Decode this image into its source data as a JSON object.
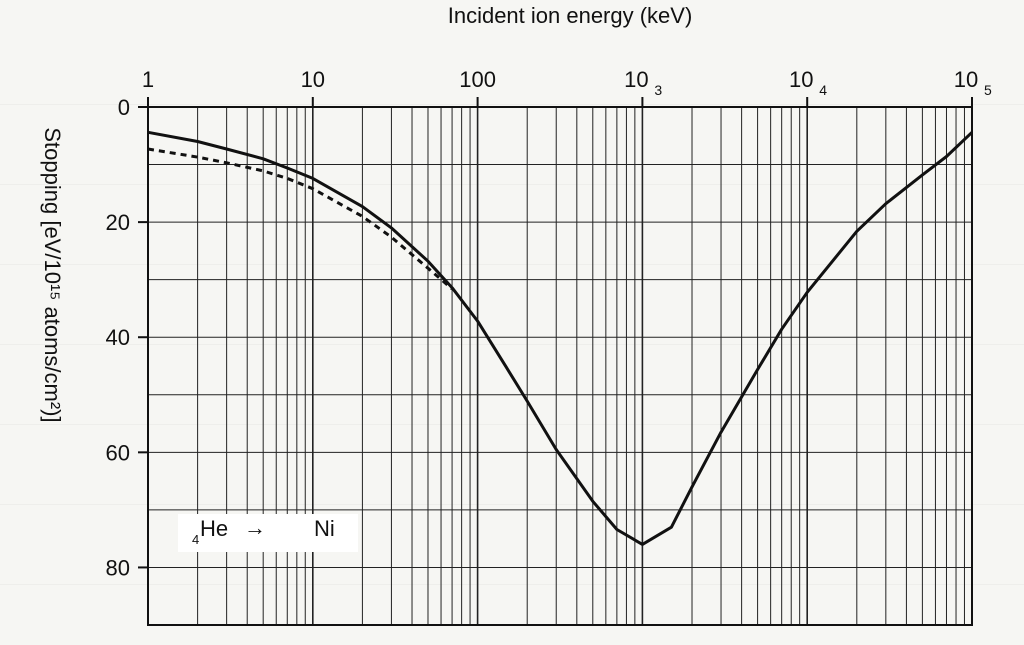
{
  "chart_data": {
    "type": "line",
    "title": "",
    "xlabel": "Incident ion energy (keV)",
    "ylabel": "Stopping [eV/10¹⁵ atoms/cm²)]",
    "x_scale": "log",
    "xlim": [
      1,
      100000
    ],
    "ylim": [
      0,
      90
    ],
    "y_inverted": true,
    "grid": true,
    "x_ticks": [
      {
        "value": 1,
        "base": "1",
        "exp": ""
      },
      {
        "value": 10,
        "base": "10",
        "exp": ""
      },
      {
        "value": 100,
        "base": "100",
        "exp": ""
      },
      {
        "value": 1000,
        "base": "10",
        "exp": "3"
      },
      {
        "value": 10000,
        "base": "10",
        "exp": "4"
      },
      {
        "value": 100000,
        "base": "10",
        "exp": "5"
      }
    ],
    "y_ticks": [
      0,
      20,
      40,
      60,
      80
    ],
    "series": [
      {
        "style": "solid",
        "x": [
          1,
          2,
          3,
          5,
          7,
          10,
          20,
          30,
          50,
          70,
          100,
          150,
          200,
          300,
          500,
          700,
          1000,
          1500,
          2000,
          3000,
          5000,
          7000,
          10000,
          20000,
          30000,
          50000,
          70000,
          100000
        ],
        "y": [
          4.4,
          6.0,
          7.3,
          9.0,
          10.6,
          12.4,
          17.3,
          21.0,
          26.8,
          31.4,
          37.2,
          45.3,
          51.1,
          59.5,
          68.5,
          73.4,
          76.0,
          73.0,
          66.0,
          56.5,
          45.6,
          38.6,
          32.2,
          21.6,
          16.8,
          11.8,
          8.6,
          4.4
        ]
      },
      {
        "style": "dashed",
        "x": [
          1,
          2,
          3,
          5,
          7,
          10,
          20,
          30,
          50,
          70
        ],
        "y": [
          7.3,
          8.7,
          9.7,
          11.1,
          12.4,
          14.2,
          19.0,
          22.6,
          28.0,
          31.6
        ]
      }
    ],
    "annotation": {
      "ion": "He",
      "ion_mass": "4",
      "arrow": "→",
      "target": "Ni"
    }
  }
}
